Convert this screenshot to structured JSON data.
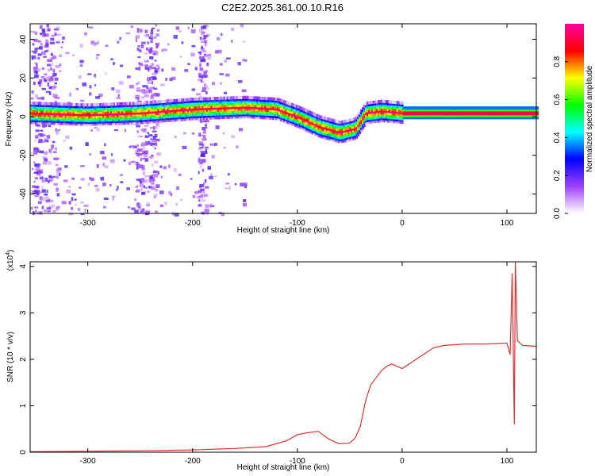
{
  "title": "C2E2.2025.361.00.10.R16",
  "chart_data": [
    {
      "type": "heatmap",
      "xlabel": "Height of straight line (km)",
      "ylabel": "Frequency (Hz)",
      "xlim": [
        -355,
        128
      ],
      "ylim": [
        -50,
        48
      ],
      "xticks": [
        -300,
        -200,
        -100,
        0,
        100
      ],
      "yticks": [
        -40,
        -20,
        0,
        20,
        40
      ],
      "colorbar": {
        "label": "Normalized spectral amplitude",
        "range": [
          0,
          1
        ],
        "ticks": [
          0.0,
          0.2,
          0.4,
          0.6,
          0.8
        ],
        "tick_labels": [
          "0.0",
          "0.2",
          "0.4",
          "0.6",
          "0.8"
        ],
        "colors": [
          "#ffffff",
          "#a040ff",
          "#0000ff",
          "#00ffff",
          "#00ff00",
          "#ffff00",
          "#ff0000",
          "#ff00a0"
        ]
      },
      "ridge": [
        {
          "x": -355,
          "y": 2
        },
        {
          "x": -300,
          "y": 1
        },
        {
          "x": -250,
          "y": 2
        },
        {
          "x": -200,
          "y": 4
        },
        {
          "x": -150,
          "y": 5
        },
        {
          "x": -120,
          "y": 4
        },
        {
          "x": -100,
          "y": 0
        },
        {
          "x": -80,
          "y": -5
        },
        {
          "x": -60,
          "y": -8
        },
        {
          "x": -45,
          "y": -6
        },
        {
          "x": -35,
          "y": 2
        },
        {
          "x": -20,
          "y": 3
        },
        {
          "x": 0,
          "y": 2
        },
        {
          "x": 100,
          "y": 2
        },
        {
          "x": 128,
          "y": 2
        }
      ]
    },
    {
      "type": "line",
      "xlabel": "Height of straight line (km)",
      "ylabel": "SNR (10 * v/v)",
      "multiplier": "(x10",
      "multiplier_exp": "4",
      "multiplier_close": ")",
      "xlim": [
        -355,
        128
      ],
      "ylim": [
        0,
        4.1
      ],
      "xticks": [
        -300,
        -200,
        -100,
        0,
        100
      ],
      "yticks": [
        0,
        1,
        2,
        3,
        4
      ],
      "color": "#e03030",
      "series": [
        {
          "x": [
            -355,
            -300,
            -250,
            -200,
            -160,
            -130,
            -110,
            -100,
            -90,
            -80,
            -70,
            -60,
            -50,
            -45,
            -40,
            -35,
            -30,
            -25,
            -20,
            -15,
            -10,
            -5,
            0,
            10,
            20,
            30,
            40,
            60,
            80,
            100,
            103,
            105,
            107,
            108,
            110,
            115,
            128
          ],
          "y": [
            0.01,
            0.02,
            0.03,
            0.05,
            0.08,
            0.12,
            0.25,
            0.38,
            0.42,
            0.45,
            0.28,
            0.18,
            0.2,
            0.3,
            0.55,
            1.1,
            1.45,
            1.6,
            1.75,
            1.85,
            1.9,
            1.85,
            1.8,
            1.95,
            2.1,
            2.25,
            2.3,
            2.33,
            2.33,
            2.35,
            2.1,
            3.85,
            0.6,
            4.1,
            2.4,
            2.3,
            2.28
          ]
        }
      ]
    }
  ]
}
